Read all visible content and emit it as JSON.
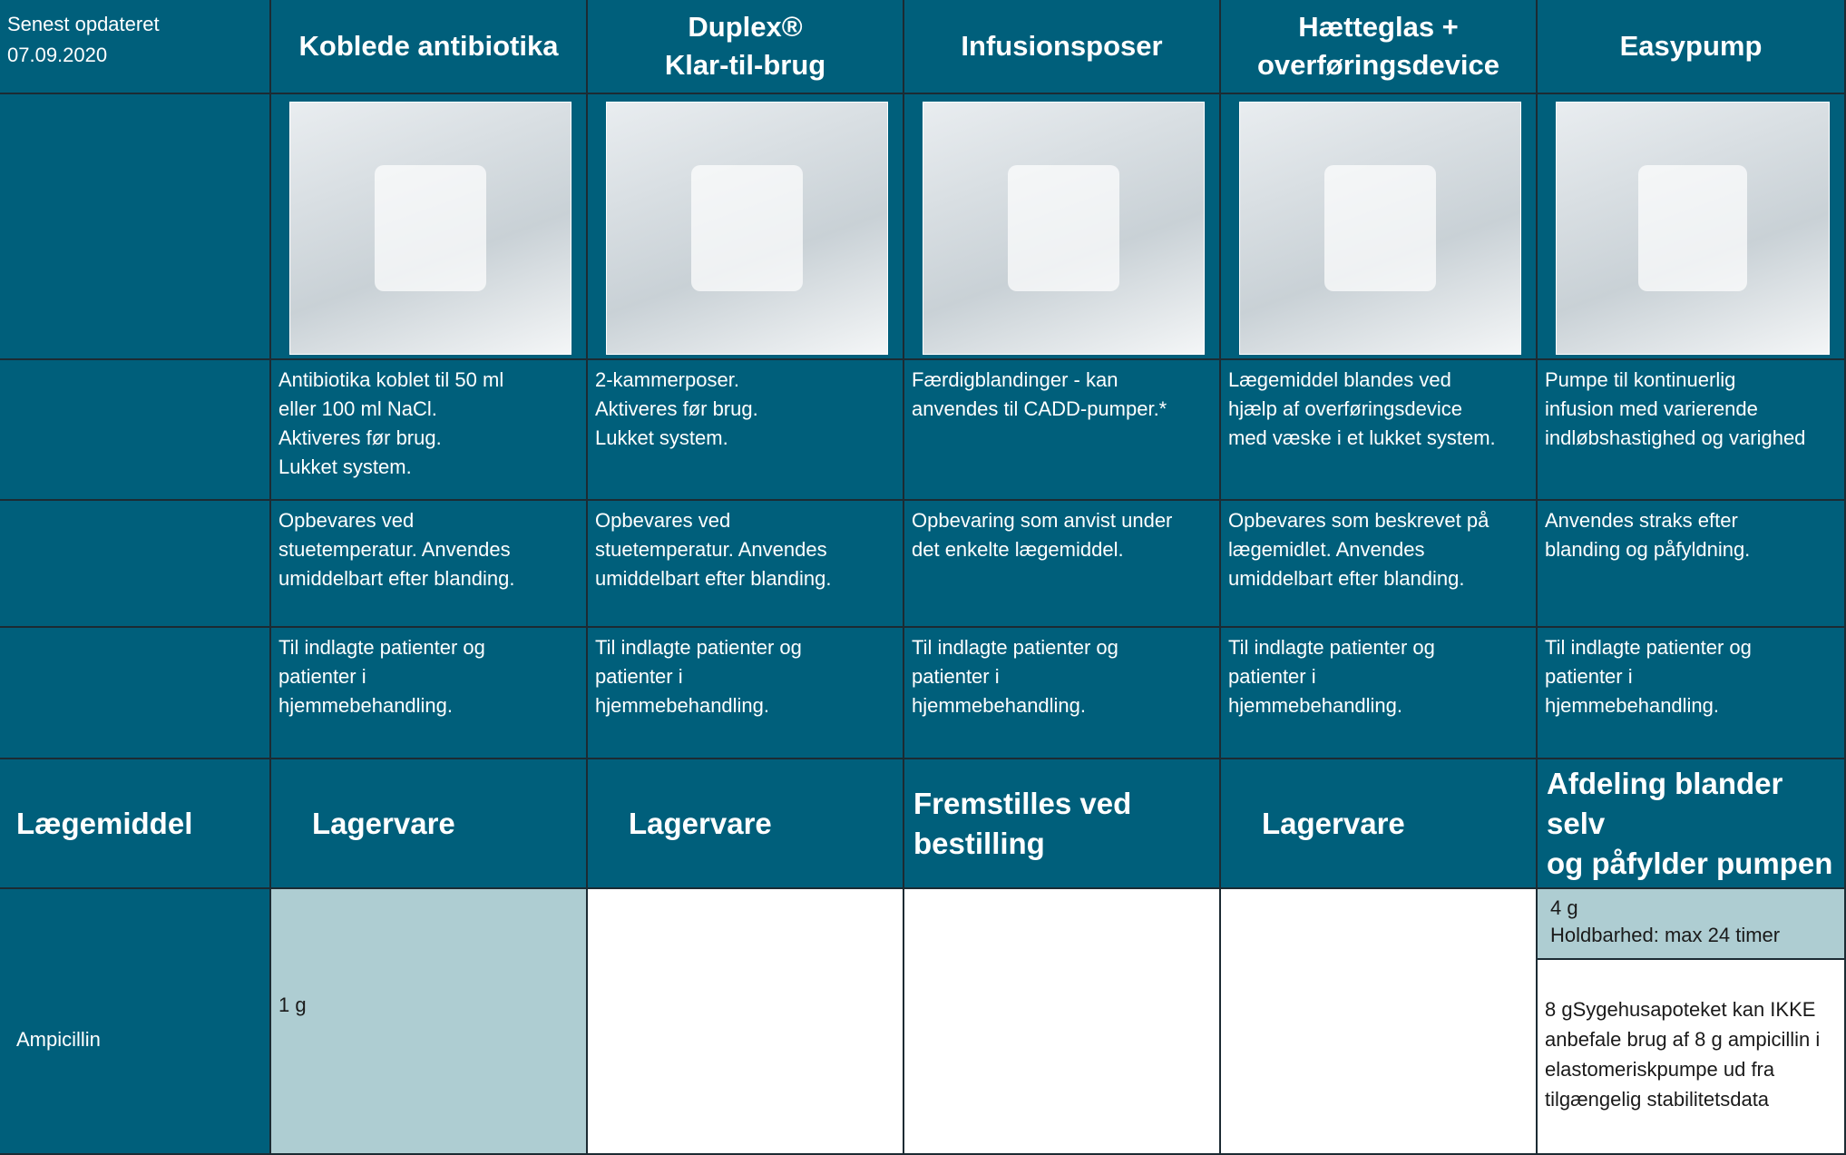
{
  "header": {
    "updated_label": "Senest opdateret",
    "updated_date": "07.09.2020"
  },
  "columns": [
    {
      "title": [
        "Koblede antibiotika"
      ],
      "description": [
        "Antibiotika koblet til 50 ml",
        "eller 100 ml NaCl.",
        "Aktiveres før brug.",
        "Lukket system."
      ],
      "storage": [
        "Opbevares ved",
        "stuetemperatur. Anvendes",
        "umiddelbart efter blanding."
      ],
      "patients": [
        "Til indlagte patienter og",
        "patienter i",
        "hjemmebehandling."
      ],
      "category": [
        "Lagervare"
      ]
    },
    {
      "title": [
        "Duplex®",
        "Klar-til-brug"
      ],
      "description": [
        "2-kammerposer.",
        "Aktiveres før brug.",
        "Lukket system."
      ],
      "storage": [
        "Opbevares ved",
        "stuetemperatur. Anvendes",
        "umiddelbart efter blanding."
      ],
      "patients": [
        "Til indlagte patienter og",
        "patienter i",
        "hjemmebehandling."
      ],
      "category": [
        "Lagervare"
      ]
    },
    {
      "title": [
        "Infusionsposer"
      ],
      "description": [
        "Færdigblandinger -  kan",
        "anvendes til CADD-pumper.*"
      ],
      "storage": [
        "Opbevaring som anvist under",
        "det enkelte lægemiddel."
      ],
      "patients": [
        "Til indlagte patienter og",
        "patienter i",
        "hjemmebehandling."
      ],
      "category": [
        "Fremstilles ved",
        "bestilling"
      ]
    },
    {
      "title": [
        "Hætteglas +",
        "overføringsdevice"
      ],
      "description": [
        "Lægemiddel blandes ved",
        "hjælp af overføringsdevice",
        "med væske i et lukket system."
      ],
      "storage": [
        "Opbevares som beskrevet på",
        "lægemidlet. Anvendes",
        "umiddelbart efter blanding."
      ],
      "patients": [
        "Til indlagte patienter og",
        "patienter i",
        "hjemmebehandling."
      ],
      "category": [
        "Lagervare"
      ]
    },
    {
      "title": [
        "Easypump"
      ],
      "description": [
        "Pumpe til kontinuerlig",
        "infusion med varierende",
        "indløbshastighed og varighed"
      ],
      "storage": [
        "Anvendes straks efter",
        "blanding og påfyldning."
      ],
      "patients": [
        "Til indlagte patienter og",
        "patienter i",
        "hjemmebehandling."
      ],
      "category": [
        "Afdeling blander selv",
        "og påfylder pumpen"
      ]
    }
  ],
  "row_header": "Lægemiddel",
  "drugs": [
    {
      "name": "Ampicillin",
      "koblede": "1 g",
      "easypump_top": [
        "4 g",
        "Holdbarhed: max 24 timer"
      ],
      "easypump_bottom": "8 gSygehusapoteket kan IKKE anbefale brug af 8 g ampicillin i elastomeriskpumpe ud fra tilgængelig stabilitetsdata"
    }
  ]
}
